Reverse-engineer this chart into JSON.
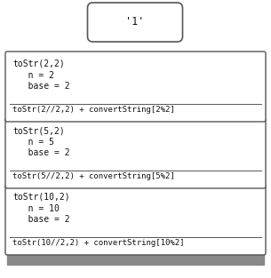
{
  "bg_color": "#ffffff",
  "box_fill": "#ffffff",
  "box_edge": "#555555",
  "bar_fill": "#888888",
  "bubble_fill": "#ffffff",
  "bubble_edge": "#555555",
  "bubble_text": "'1'",
  "frames": [
    {
      "title": "toStr(2,2)",
      "var1": "   n = 2",
      "var2": "   base = 2",
      "bottom_text": "toStr(2//2,2) + convertString[2%2]"
    },
    {
      "title": "toStr(5,2)",
      "var1": "   n = 5",
      "var2": "   base = 2",
      "bottom_text": "toStr(5//2,2) + convertString[5%2]"
    },
    {
      "title": "toStr(10,2)",
      "var1": "   n = 10",
      "var2": "   base = 2",
      "bottom_text": "toStr(10//2,2) + convertString[10%2]"
    }
  ],
  "font_family": "monospace",
  "font_size": 7.0,
  "bubble_font_size": 8.5
}
